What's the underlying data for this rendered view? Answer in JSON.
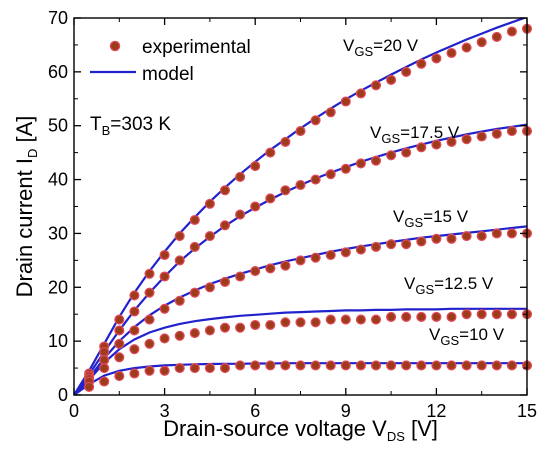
{
  "chart_data": {
    "type": "scatter",
    "xlabel": {
      "main": "Drain-source voltage V",
      "sub": "DS",
      "unit": " [V]"
    },
    "ylabel": {
      "main": "Drain current I",
      "sub": "D",
      "unit": " [A]"
    },
    "xlim": [
      0,
      15
    ],
    "ylim": [
      0,
      70
    ],
    "xticks": [
      0,
      3,
      6,
      9,
      12,
      15
    ],
    "yticks": [
      0,
      10,
      20,
      30,
      40,
      50,
      60,
      70
    ],
    "grid": false,
    "legend": {
      "position": "top-left",
      "entries": [
        {
          "label": "experimental",
          "kind": "marker"
        },
        {
          "label": "model",
          "kind": "line"
        }
      ]
    },
    "annotation": {
      "main": "T",
      "sub": "B",
      "rest": "=303 K"
    },
    "colors": {
      "marker_fill": "#9e3b1a",
      "marker_edge": "#e04a5a",
      "model_line": "#2222cc"
    },
    "x": [
      0,
      0.5,
      1,
      1.5,
      2,
      2.5,
      3,
      3.5,
      4,
      4.5,
      5,
      5.5,
      6,
      6.5,
      7,
      7.5,
      8,
      8.5,
      9,
      9.5,
      10,
      10.5,
      11,
      11.5,
      12,
      12.5,
      13,
      13.5,
      14,
      14.5,
      15
    ],
    "series": [
      {
        "label": {
          "main": "V",
          "sub": "GS",
          "rest": "=20 V"
        },
        "experimental": [
          0,
          4,
          9,
          14,
          18.5,
          22.5,
          26,
          29.5,
          32.5,
          35.5,
          38,
          40.5,
          42.5,
          45,
          47,
          49,
          51,
          52.5,
          54.5,
          56,
          57.5,
          58.5,
          60,
          61.5,
          62.5,
          63.5,
          64.5,
          65.5,
          66.5,
          67.5,
          68
        ],
        "model": [
          0,
          4.5,
          9.5,
          14.5,
          19,
          23,
          26.6,
          30,
          33,
          35.9,
          38.5,
          41,
          43.3,
          45.5,
          47.5,
          49.5,
          51.4,
          53.2,
          54.9,
          56.5,
          58,
          59.5,
          60.9,
          62.3,
          63.6,
          64.8,
          66,
          67.1,
          68.2,
          69.2,
          70.2
        ]
      },
      {
        "label": {
          "main": "V",
          "sub": "GS",
          "rest": "=17.5 V"
        },
        "experimental": [
          0,
          3.5,
          8,
          12,
          15.5,
          19,
          22,
          25,
          27.5,
          29.5,
          31.5,
          33.5,
          35,
          36.5,
          38,
          39,
          40,
          41,
          42,
          43,
          43.5,
          44.5,
          45,
          46,
          46.5,
          47,
          47.5,
          48,
          48.5,
          49,
          49
        ],
        "model": [
          0,
          3.8,
          8,
          12,
          15.7,
          19,
          22,
          24.8,
          27.2,
          29.4,
          31.4,
          33.2,
          34.8,
          36.3,
          37.7,
          39,
          40.2,
          41.3,
          42.3,
          43.3,
          44.2,
          45,
          45.8,
          46.5,
          47.2,
          47.8,
          48.4,
          48.9,
          49.4,
          49.8,
          50.2
        ]
      },
      {
        "label": {
          "main": "V",
          "sub": "GS",
          "rest": "=15 V"
        },
        "experimental": [
          0,
          3,
          6.5,
          9.5,
          12,
          14,
          16,
          17.5,
          19,
          20,
          21,
          22,
          23,
          23.5,
          24,
          25,
          25.5,
          26,
          26.5,
          27,
          27.5,
          28,
          28,
          28.5,
          29,
          29,
          29.5,
          29.5,
          30,
          30,
          30
        ],
        "model": [
          0,
          3.2,
          6.8,
          10,
          12.6,
          14.8,
          16.6,
          18.1,
          19.4,
          20.6,
          21.6,
          22.5,
          23.3,
          24.1,
          24.8,
          25.4,
          26,
          26.6,
          27.1,
          27.6,
          28,
          28.4,
          28.8,
          29.2,
          29.5,
          29.8,
          30.1,
          30.4,
          30.7,
          31,
          31.3
        ]
      },
      {
        "label": {
          "main": "V",
          "sub": "GS",
          "rest": "=12.5 V"
        },
        "experimental": [
          0,
          2.5,
          5,
          7,
          8.5,
          9.5,
          10.5,
          11,
          11.5,
          12,
          12.5,
          12.5,
          13,
          13,
          13.5,
          13.5,
          13.5,
          14,
          14,
          14,
          14,
          14.5,
          14.5,
          14.5,
          14.5,
          14.5,
          15,
          15,
          15,
          15,
          15
        ],
        "model": [
          0,
          2.8,
          6,
          8.5,
          10.3,
          11.6,
          12.5,
          13.2,
          13.7,
          14.1,
          14.4,
          14.7,
          14.9,
          15.1,
          15.3,
          15.4,
          15.5,
          15.6,
          15.7,
          15.7,
          15.8,
          15.8,
          15.9,
          15.9,
          15.9,
          16,
          16,
          16,
          16,
          16,
          16
        ]
      },
      {
        "label": {
          "main": "V",
          "sub": "GS",
          "rest": "=10 V"
        },
        "experimental": [
          0,
          1.5,
          2.5,
          3.5,
          4,
          4.5,
          4.5,
          5,
          5,
          5,
          5,
          5.5,
          5.5,
          5.5,
          5.5,
          5.5,
          5.5,
          5.5,
          5.5,
          5.5,
          5.5,
          5.5,
          5.5,
          5.5,
          5.5,
          5.5,
          5.5,
          5.5,
          5.5,
          5.5,
          5.5
        ],
        "model": [
          0,
          2,
          3.6,
          4.5,
          5,
          5.3,
          5.5,
          5.6,
          5.7,
          5.75,
          5.8,
          5.8,
          5.85,
          5.85,
          5.9,
          5.9,
          5.9,
          5.9,
          5.9,
          5.9,
          5.9,
          5.9,
          5.9,
          5.9,
          5.9,
          5.9,
          5.9,
          5.9,
          5.9,
          5.9,
          5.9
        ]
      }
    ]
  }
}
